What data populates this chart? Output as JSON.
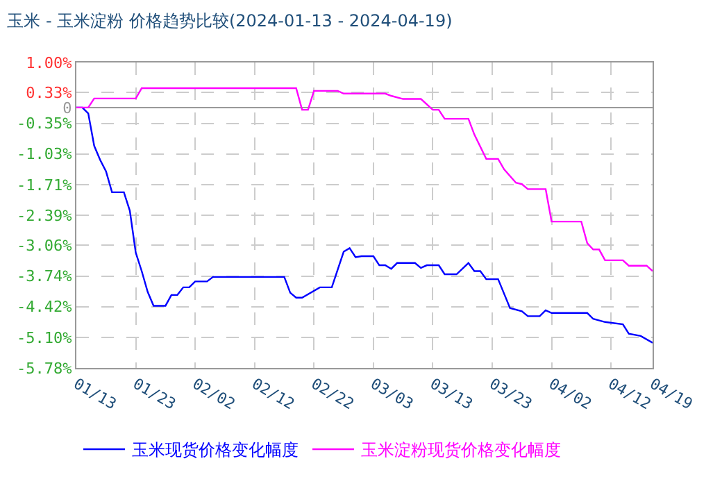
{
  "chart_data": {
    "type": "line",
    "title": "玉米 - 玉米淀粉 价格趋势比较(2024-01-13 - 2024-04-19)",
    "series": [
      {
        "name": "玉米现货价格变化幅度",
        "color": "#0000ff",
        "x": [
          "2024-01-13",
          "2024-01-14",
          "2024-01-15",
          "2024-01-16",
          "2024-01-17",
          "2024-01-18",
          "2024-01-19",
          "2024-01-21",
          "2024-01-22",
          "2024-01-23",
          "2024-01-24",
          "2024-01-25",
          "2024-01-26",
          "2024-01-28",
          "2024-01-29",
          "2024-01-30",
          "2024-01-31",
          "2024-02-01",
          "2024-02-02",
          "2024-02-04",
          "2024-02-05",
          "2024-02-17",
          "2024-02-18",
          "2024-02-19",
          "2024-02-20",
          "2024-02-23",
          "2024-02-25",
          "2024-02-27",
          "2024-02-28",
          "2024-02-29",
          "2024-03-01",
          "2024-03-03",
          "2024-03-04",
          "2024-03-05",
          "2024-03-06",
          "2024-03-07",
          "2024-03-10",
          "2024-03-11",
          "2024-03-12",
          "2024-03-14",
          "2024-03-15",
          "2024-03-17",
          "2024-03-19",
          "2024-03-20",
          "2024-03-21",
          "2024-03-22",
          "2024-03-24",
          "2024-03-26",
          "2024-03-28",
          "2024-03-29",
          "2024-03-31",
          "2024-04-01",
          "2024-04-02",
          "2024-04-08",
          "2024-04-09",
          "2024-04-11",
          "2024-04-14",
          "2024-04-15",
          "2024-04-17",
          "2024-04-19"
        ],
        "values": [
          0,
          0,
          -0.13,
          -0.85,
          -1.16,
          -1.42,
          -1.88,
          -1.88,
          -2.29,
          -3.22,
          -3.63,
          -4.09,
          -4.4,
          -4.4,
          -4.16,
          -4.16,
          -3.99,
          -3.99,
          -3.86,
          -3.86,
          -3.76,
          -3.76,
          -4.11,
          -4.22,
          -4.22,
          -3.99,
          -3.99,
          -3.2,
          -3.12,
          -3.32,
          -3.3,
          -3.3,
          -3.5,
          -3.5,
          -3.58,
          -3.45,
          -3.45,
          -3.56,
          -3.5,
          -3.5,
          -3.7,
          -3.7,
          -3.45,
          -3.63,
          -3.63,
          -3.81,
          -3.81,
          -4.45,
          -4.52,
          -4.63,
          -4.63,
          -4.5,
          -4.56,
          -4.56,
          -4.69,
          -4.76,
          -4.81,
          -5.02,
          -5.07,
          -5.22
        ]
      },
      {
        "name": "玉米淀粉现货价格变化幅度",
        "color": "#ff00ff",
        "x": [
          "2024-01-13",
          "2024-01-15",
          "2024-01-16",
          "2024-01-23",
          "2024-01-24",
          "2024-02-19",
          "2024-02-20",
          "2024-02-21",
          "2024-02-22",
          "2024-02-26",
          "2024-02-27",
          "2024-03-05",
          "2024-03-06",
          "2024-03-08",
          "2024-03-11",
          "2024-03-13",
          "2024-03-14",
          "2024-03-15",
          "2024-03-19",
          "2024-03-20",
          "2024-03-22",
          "2024-03-24",
          "2024-03-25",
          "2024-03-27",
          "2024-03-28",
          "2024-03-29",
          "2024-04-01",
          "2024-04-02",
          "2024-04-07",
          "2024-04-08",
          "2024-04-09",
          "2024-04-10",
          "2024-04-11",
          "2024-04-14",
          "2024-04-15",
          "2024-04-18",
          "2024-04-19"
        ],
        "values": [
          0,
          0,
          0.2,
          0.2,
          0.43,
          0.43,
          -0.05,
          -0.05,
          0.37,
          0.37,
          0.31,
          0.31,
          0.26,
          0.19,
          0.19,
          -0.05,
          -0.05,
          -0.25,
          -0.25,
          -0.6,
          -1.14,
          -1.14,
          -1.37,
          -1.67,
          -1.7,
          -1.81,
          -1.81,
          -2.53,
          -2.53,
          -3.01,
          -3.15,
          -3.15,
          -3.39,
          -3.39,
          -3.51,
          -3.51,
          -3.63
        ]
      }
    ],
    "xlim": [
      "2024-01-13",
      "2024-04-19"
    ],
    "xticks": [
      {
        "value": "2024-01-13",
        "label": "01/13"
      },
      {
        "value": "2024-01-23",
        "label": "01/23"
      },
      {
        "value": "2024-02-02",
        "label": "02/02"
      },
      {
        "value": "2024-02-12",
        "label": "02/12"
      },
      {
        "value": "2024-02-22",
        "label": "02/22"
      },
      {
        "value": "2024-03-03",
        "label": "03/03"
      },
      {
        "value": "2024-03-13",
        "label": "03/13"
      },
      {
        "value": "2024-03-23",
        "label": "03/23"
      },
      {
        "value": "2024-04-02",
        "label": "04/02"
      },
      {
        "value": "2024-04-12",
        "label": "04/12"
      },
      {
        "value": "2024-04-19",
        "label": "04/19"
      }
    ],
    "ylim": [
      -5.78,
      1.0
    ],
    "yticks": [
      {
        "value": 1.0,
        "label": "1.00%"
      },
      {
        "value": 0.33,
        "label": "0.33%"
      },
      0,
      {
        "value": -0.35,
        "label": "-0.35%"
      },
      {
        "value": -1.03,
        "label": "-1.03%"
      },
      {
        "value": -1.71,
        "label": "-1.71%"
      },
      {
        "value": -2.39,
        "label": "-2.39%"
      },
      {
        "value": -3.06,
        "label": "-3.06%"
      },
      {
        "value": -3.74,
        "label": "-3.74%"
      },
      {
        "value": -4.42,
        "label": "-4.42%"
      },
      {
        "value": -5.1,
        "label": "-5.10%"
      },
      {
        "value": -5.78,
        "label": "-5.78%"
      }
    ],
    "grid": true,
    "legend": "bottom",
    "marker": "none",
    "line_style": "solid"
  }
}
